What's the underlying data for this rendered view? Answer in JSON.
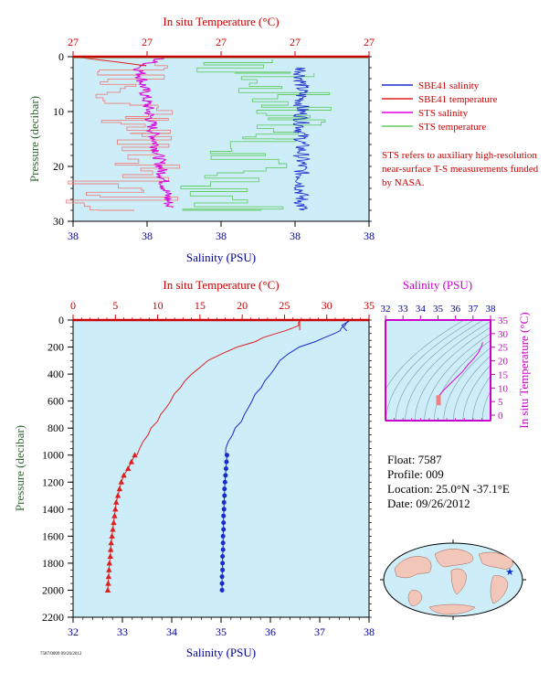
{
  "colors": {
    "plot_bg": "#cdeef8",
    "axis_red": "#cc0000",
    "axis_blue": "#000099",
    "axis_green": "#336633",
    "axis_magenta": "#cc00cc",
    "salinity": "#1a2bcc",
    "temperature": "#e02020",
    "sts_salinity": "#dd00dd",
    "sts_temperature": "#66cc66",
    "sts_temp_pink": "#f08080"
  },
  "chart_data": [
    {
      "type": "line",
      "top_axis_label": "In situ Temperature (°C)",
      "top_ticks": [
        "27",
        "27",
        "27",
        "27",
        "27"
      ],
      "bottom_axis_label": "Salinity (PSU)",
      "bottom_ticks": [
        "38",
        "38",
        "38",
        "38",
        "38"
      ],
      "left_axis_label": "Pressure (decibar)",
      "ylim": [
        30,
        0
      ],
      "yticks": [
        0,
        10,
        20,
        30
      ],
      "legend": {
        "position": "right",
        "entries": [
          {
            "name": "SBE41 salinity",
            "color": "#1a2bcc"
          },
          {
            "name": "SBE41 temperature",
            "color": "#e02020"
          },
          {
            "name": "STS salinity",
            "color": "#dd00dd"
          },
          {
            "name": "STS temperature",
            "color": "#66cc66"
          }
        ]
      },
      "note": "STS refers to auxiliary high-resolution near-surface T-S measurements funded by NASA."
    },
    {
      "type": "line",
      "top_axis_label": "In situ Temperature (°C)",
      "top_ticks": [
        0,
        5,
        10,
        15,
        20,
        25,
        30,
        35
      ],
      "bottom_axis_label": "Salinity (PSU)",
      "bottom_ticks": [
        32,
        33,
        34,
        35,
        36,
        37,
        38
      ],
      "left_axis_label": "Pressure (decibar)",
      "yticks": [
        0,
        200,
        400,
        600,
        800,
        1000,
        1200,
        1400,
        1600,
        1800,
        2000,
        2200
      ],
      "ylim": [
        2200,
        0
      ],
      "temperature_xlim": [
        0,
        35
      ],
      "salinity_xlim": [
        32,
        38
      ],
      "series": [
        {
          "name": "temperature",
          "axis": "top",
          "pressure": [
            5,
            20,
            40,
            60,
            80,
            100,
            130,
            160,
            200,
            250,
            300,
            350,
            400,
            450,
            500,
            550,
            600,
            650,
            700,
            750,
            800,
            850,
            900,
            950,
            1000
          ],
          "values": [
            26.8,
            26.7,
            26.6,
            26.0,
            25.0,
            24.0,
            22.5,
            21.5,
            19.5,
            17.5,
            16.0,
            15.0,
            14.0,
            13.3,
            12.6,
            12.0,
            11.5,
            11.0,
            10.4,
            9.9,
            9.3,
            8.8,
            8.3,
            7.9,
            7.5
          ]
        },
        {
          "name": "salinity",
          "axis": "bottom",
          "pressure": [
            5,
            20,
            40,
            60,
            80,
            100,
            130,
            160,
            200,
            250,
            300,
            350,
            400,
            450,
            500,
            550,
            600,
            650,
            700,
            750,
            800,
            850,
            900,
            950,
            1000
          ],
          "values": [
            37.6,
            37.55,
            37.5,
            37.45,
            37.4,
            37.3,
            37.1,
            36.9,
            36.6,
            36.35,
            36.2,
            36.1,
            36.0,
            35.9,
            35.8,
            35.7,
            35.62,
            35.55,
            35.48,
            35.4,
            35.3,
            35.22,
            35.15,
            35.1,
            35.08
          ]
        },
        {
          "name": "temperature-deep",
          "axis": "top",
          "marker": "triangle",
          "pressure": [
            1000,
            1050,
            1100,
            1150,
            1200,
            1250,
            1300,
            1350,
            1400,
            1450,
            1500,
            1550,
            1600,
            1650,
            1700,
            1750,
            1800,
            1850,
            1900,
            1950,
            2000
          ],
          "values": [
            7.3,
            6.9,
            6.5,
            6.0,
            5.7,
            5.5,
            5.3,
            5.1,
            5.0,
            4.9,
            4.8,
            4.7,
            4.6,
            4.5,
            4.45,
            4.4,
            4.3,
            4.25,
            4.2,
            4.15,
            4.1
          ]
        },
        {
          "name": "salinity-deep",
          "axis": "bottom",
          "marker": "circle",
          "pressure": [
            1000,
            1050,
            1100,
            1150,
            1200,
            1250,
            1300,
            1350,
            1400,
            1450,
            1500,
            1550,
            1600,
            1650,
            1700,
            1750,
            1800,
            1850,
            1900,
            1950,
            2000
          ],
          "values": [
            35.12,
            35.11,
            35.1,
            35.09,
            35.08,
            35.07,
            35.07,
            35.06,
            35.06,
            35.05,
            35.05,
            35.05,
            35.04,
            35.04,
            35.04,
            35.03,
            35.03,
            35.03,
            35.02,
            35.02,
            35.02
          ]
        }
      ]
    },
    {
      "type": "scatter",
      "top_axis_label": "Salinity (PSU)",
      "top_ticks": [
        32,
        33,
        34,
        35,
        36,
        37,
        38
      ],
      "right_axis_label": "In situ Temperature (°C)",
      "right_ticks": [
        0,
        5,
        10,
        15,
        20,
        25,
        30,
        35
      ],
      "xlim": [
        32,
        38
      ],
      "ylim": [
        -2,
        35
      ],
      "series": [
        {
          "name": "T-S",
          "salinity": [
            35.0,
            35.05,
            35.1,
            35.3,
            35.6,
            36.0,
            36.4,
            36.7,
            37.0,
            37.3,
            37.5,
            37.55
          ],
          "temperature": [
            4.2,
            5.0,
            7.5,
            9.0,
            11.0,
            13.5,
            16.0,
            18.5,
            20.5,
            23.0,
            25.5,
            26.8
          ]
        }
      ]
    }
  ],
  "info": {
    "float": "Float:  7587",
    "profile": "Profile:  009",
    "location": "Location:  25.0°N  -37.1°E",
    "date": "Date:  09/26/2012"
  },
  "footer_small": "7587/0009 09/26/2012",
  "map_marker_color": "#1030d0"
}
